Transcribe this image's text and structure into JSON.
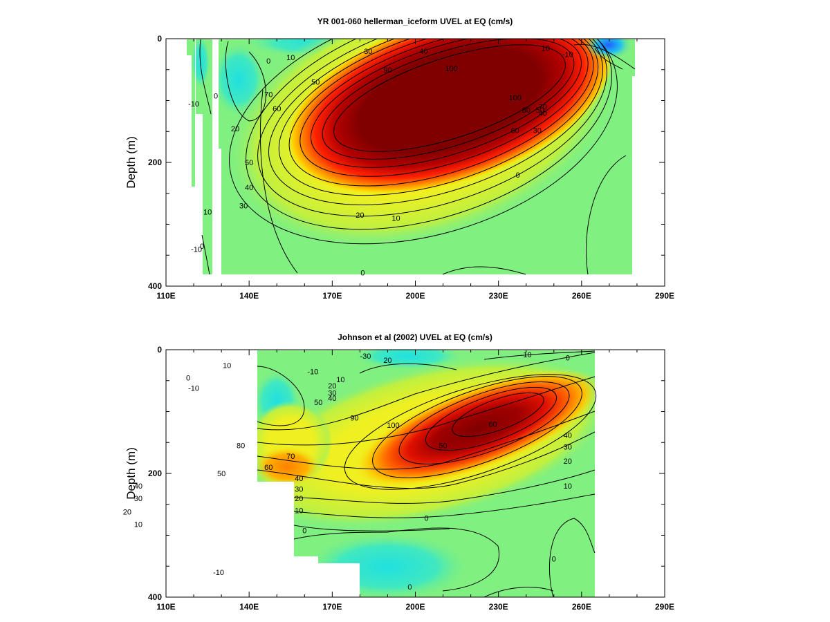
{
  "chart_data": [
    {
      "type": "heatmap",
      "title": "YR 001-060 hellerman_iceform UVEL at EQ (cm/s)",
      "xlabel": "",
      "ylabel": "Depth (m)",
      "xlim": [
        110,
        290
      ],
      "ylim": [
        0,
        400
      ],
      "y_inverted": true,
      "x_ticks": [
        "110E",
        "140E",
        "170E",
        "200E",
        "230E",
        "260E",
        "290E"
      ],
      "y_ticks": [
        "0",
        "200",
        "400"
      ],
      "color_scale": {
        "min": -30,
        "max": 100,
        "colors": [
          "#2040ff",
          "#20e0e0",
          "#80f080",
          "#f0f020",
          "#ff8000",
          "#ff0000",
          "#800000"
        ]
      },
      "data_extent": {
        "lon": [
          118,
          278
        ],
        "depth": [
          0,
          380
        ]
      },
      "jet_core": {
        "lon": 215,
        "depth": 110,
        "max_speed": 100
      },
      "contour_labels": [
        {
          "text": "0",
          "lon": 147,
          "depth": 36
        },
        {
          "text": "10",
          "lon": 155,
          "depth": 30
        },
        {
          "text": "30",
          "lon": 183,
          "depth": 20
        },
        {
          "text": "40",
          "lon": 203,
          "depth": 20
        },
        {
          "text": "90",
          "lon": 190,
          "depth": 50
        },
        {
          "text": "100",
          "lon": 213,
          "depth": 48
        },
        {
          "text": "50",
          "lon": 164,
          "depth": 70
        },
        {
          "text": "70",
          "lon": 147,
          "depth": 90
        },
        {
          "text": "60",
          "lon": 150,
          "depth": 113
        },
        {
          "text": "-10",
          "lon": 120,
          "depth": 105
        },
        {
          "text": "0",
          "lon": 128,
          "depth": 92
        },
        {
          "text": "20",
          "lon": 135,
          "depth": 145
        },
        {
          "text": "50",
          "lon": 140,
          "depth": 200
        },
        {
          "text": "40",
          "lon": 140,
          "depth": 240
        },
        {
          "text": "30",
          "lon": 138,
          "depth": 270
        },
        {
          "text": "10",
          "lon": 125,
          "depth": 280
        },
        {
          "text": "20",
          "lon": 180,
          "depth": 285
        },
        {
          "text": "10",
          "lon": 193,
          "depth": 290
        },
        {
          "text": "100",
          "lon": 236,
          "depth": 95
        },
        {
          "text": "80",
          "lon": 240,
          "depth": 115
        },
        {
          "text": "70",
          "lon": 246,
          "depth": 110
        },
        {
          "text": "60",
          "lon": 236,
          "depth": 148
        },
        {
          "text": "50",
          "lon": 245,
          "depth": 115
        },
        {
          "text": "40",
          "lon": 246,
          "depth": 120
        },
        {
          "text": "30",
          "lon": 244,
          "depth": 148
        },
        {
          "text": "10",
          "lon": 247,
          "depth": 15
        },
        {
          "text": "-10",
          "lon": 255,
          "depth": 25
        },
        {
          "text": "0",
          "lon": 237,
          "depth": 220
        },
        {
          "text": "-10",
          "lon": 121,
          "depth": 340
        },
        {
          "text": "0",
          "lon": 123,
          "depth": 335
        },
        {
          "text": "0",
          "lon": 181,
          "depth": 378
        }
      ]
    },
    {
      "type": "heatmap",
      "title": "Johnson et al (2002) UVEL at EQ (cm/s)",
      "xlabel": "",
      "ylabel": "Depth (m)",
      "xlim": [
        110,
        290
      ],
      "ylim": [
        0,
        400
      ],
      "y_inverted": true,
      "x_ticks": [
        "110E",
        "140E",
        "170E",
        "200E",
        "230E",
        "260E",
        "290E"
      ],
      "y_ticks": [
        "0",
        "200",
        "400"
      ],
      "color_scale": {
        "min": -30,
        "max": 100,
        "colors": [
          "#2040ff",
          "#20e0e0",
          "#80f080",
          "#f0f020",
          "#ff8000",
          "#ff0000",
          "#800000"
        ]
      },
      "data_extent": {
        "lon": [
          143,
          265
        ],
        "depth": [
          0,
          400
        ]
      },
      "jet_core": {
        "lon": 225,
        "depth": 110,
        "max_speed": 100
      },
      "contour_labels": [
        {
          "text": "10",
          "lon": 132,
          "depth": 25
        },
        {
          "text": "-10",
          "lon": 120,
          "depth": 62
        },
        {
          "text": "0",
          "lon": 118,
          "depth": 45
        },
        {
          "text": "-30",
          "lon": 182,
          "depth": 10
        },
        {
          "text": "20",
          "lon": 190,
          "depth": 17
        },
        {
          "text": "-10",
          "lon": 163,
          "depth": 35
        },
        {
          "text": "-10",
          "lon": 240,
          "depth": 8
        },
        {
          "text": "0",
          "lon": 255,
          "depth": 13
        },
        {
          "text": "10",
          "lon": 173,
          "depth": 48
        },
        {
          "text": "20",
          "lon": 170,
          "depth": 58
        },
        {
          "text": "30",
          "lon": 170,
          "depth": 70
        },
        {
          "text": "40",
          "lon": 170,
          "depth": 78
        },
        {
          "text": "50",
          "lon": 165,
          "depth": 85
        },
        {
          "text": "90",
          "lon": 178,
          "depth": 110
        },
        {
          "text": "100",
          "lon": 192,
          "depth": 122
        },
        {
          "text": "80",
          "lon": 137,
          "depth": 155
        },
        {
          "text": "70",
          "lon": 155,
          "depth": 172
        },
        {
          "text": "60",
          "lon": 147,
          "depth": 190
        },
        {
          "text": "50",
          "lon": 130,
          "depth": 200
        },
        {
          "text": "40",
          "lon": 158,
          "depth": 208
        },
        {
          "text": "30",
          "lon": 158,
          "depth": 225
        },
        {
          "text": "20",
          "lon": 158,
          "depth": 240
        },
        {
          "text": "10",
          "lon": 158,
          "depth": 260
        },
        {
          "text": "60",
          "lon": 228,
          "depth": 120
        },
        {
          "text": "50",
          "lon": 210,
          "depth": 155
        },
        {
          "text": "40",
          "lon": 255,
          "depth": 138
        },
        {
          "text": "30",
          "lon": 255,
          "depth": 157
        },
        {
          "text": "20",
          "lon": 255,
          "depth": 180
        },
        {
          "text": "10",
          "lon": 255,
          "depth": 220
        },
        {
          "text": "40",
          "lon": 100,
          "depth": 220
        },
        {
          "text": "30",
          "lon": 100,
          "depth": 240
        },
        {
          "text": "20",
          "lon": 96,
          "depth": 262
        },
        {
          "text": "10",
          "lon": 100,
          "depth": 282
        },
        {
          "text": "0",
          "lon": 160,
          "depth": 292
        },
        {
          "text": "0",
          "lon": 204,
          "depth": 272
        },
        {
          "text": "0",
          "lon": 250,
          "depth": 338
        },
        {
          "text": "-10",
          "lon": 129,
          "depth": 360
        },
        {
          "text": "0",
          "lon": 198,
          "depth": 383
        }
      ]
    }
  ]
}
